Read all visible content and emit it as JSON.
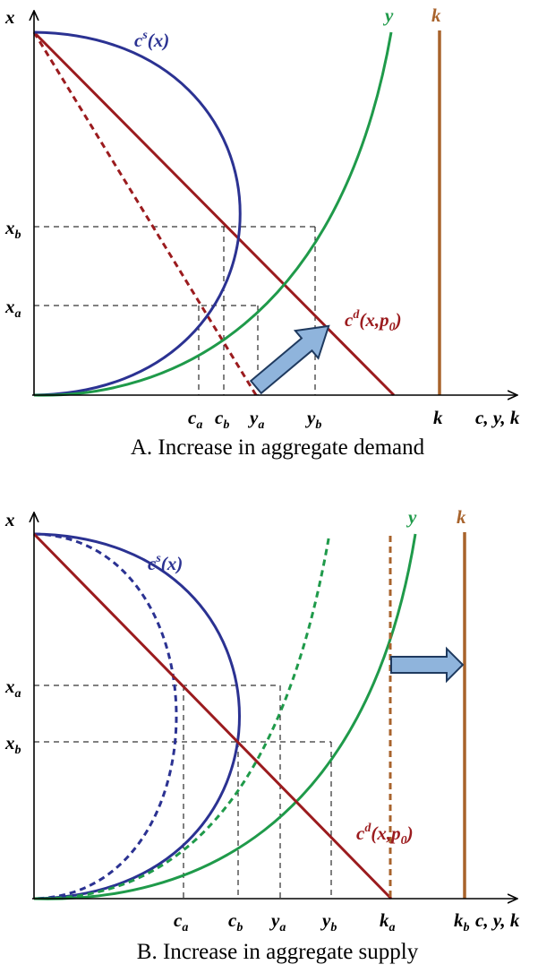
{
  "colors": {
    "axis": "#000000",
    "supply": "#2b3292",
    "demand": "#9b1b1e",
    "output": "#1f9a4a",
    "capital": "#a8632c",
    "arrow_fill": "#8fb4dc",
    "arrow_stroke": "#1f3a5f",
    "guide": "#000000"
  },
  "panel_a": {
    "caption": "A.  Increase in aggregate demand",
    "y_axis_label": "x",
    "x_axis_label": "c, y, k",
    "supply_label": {
      "base": "c",
      "sup": "s",
      "rest": "(x)"
    },
    "demand_label": {
      "base": "c",
      "sup": "d",
      "rest": "(x,p",
      "sub": "0",
      "tail": ")"
    },
    "output_label": "y",
    "capital_label": "k",
    "x_ticks": [
      {
        "base": "x",
        "sub": "b"
      },
      {
        "base": "x",
        "sub": "a"
      }
    ],
    "h_ticks": [
      {
        "base": "c",
        "sub": "a"
      },
      {
        "base": "c",
        "sub": "b"
      },
      {
        "base": "y",
        "sub": "a"
      },
      {
        "base": "y",
        "sub": "b"
      },
      {
        "base": "k",
        "sub": ""
      }
    ]
  },
  "panel_b": {
    "caption": "B.  Increase in aggregate supply",
    "y_axis_label": "x",
    "x_axis_label": "c, y, k",
    "supply_label": {
      "base": "c",
      "sup": "s",
      "rest": "(x)"
    },
    "demand_label": {
      "base": "c",
      "sup": "d",
      "rest": "(x,p",
      "sub": "0",
      "tail": ")"
    },
    "output_label": "y",
    "capital_label": "k",
    "x_ticks": [
      {
        "base": "x",
        "sub": "a"
      },
      {
        "base": "x",
        "sub": "b"
      }
    ],
    "h_ticks": [
      {
        "base": "c",
        "sub": "a"
      },
      {
        "base": "c",
        "sub": "b"
      },
      {
        "base": "y",
        "sub": "a"
      },
      {
        "base": "y",
        "sub": "b"
      },
      {
        "base": "k",
        "sub": "a"
      },
      {
        "base": "k",
        "sub": "b"
      }
    ]
  }
}
